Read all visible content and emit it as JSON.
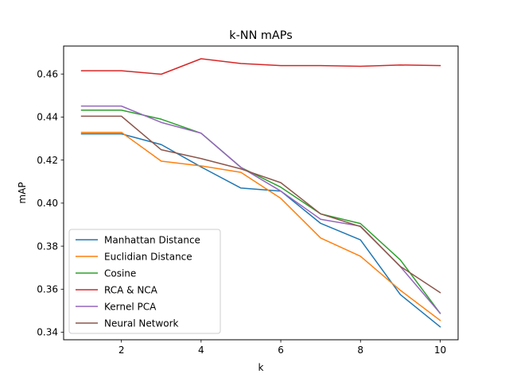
{
  "chart_data": {
    "type": "line",
    "title": "k-NN mAPs",
    "xlabel": "k",
    "ylabel": "mAP",
    "x": [
      1,
      2,
      3,
      4,
      5,
      6,
      7,
      8,
      9,
      10
    ],
    "xlim": [
      0.55,
      10.45
    ],
    "ylim": [
      0.3365,
      0.473
    ],
    "xticks": [
      2,
      4,
      6,
      8,
      10
    ],
    "yticks": [
      0.34,
      0.36,
      0.38,
      0.4,
      0.42,
      0.44,
      0.46
    ],
    "ytick_labels": [
      "0.34",
      "0.36",
      "0.38",
      "0.40",
      "0.42",
      "0.44",
      "0.46"
    ],
    "grid": false,
    "legend_position": "lower-left",
    "series": [
      {
        "name": "Manhattan Distance",
        "color": "#1f77b4",
        "values": [
          0.4322,
          0.4322,
          0.4272,
          0.4168,
          0.407,
          0.4056,
          0.3906,
          0.3829,
          0.3575,
          0.3425
        ]
      },
      {
        "name": "Euclidian Distance",
        "color": "#ff7f0e",
        "values": [
          0.4329,
          0.4329,
          0.4195,
          0.4173,
          0.4143,
          0.4022,
          0.3838,
          0.3753,
          0.3595,
          0.3455
        ]
      },
      {
        "name": "Cosine",
        "color": "#2ca02c",
        "values": [
          0.4432,
          0.4432,
          0.439,
          0.4325,
          0.4166,
          0.4074,
          0.395,
          0.3905,
          0.3736,
          0.3488
        ]
      },
      {
        "name": "RCA & NCA",
        "color": "#d62728",
        "values": [
          0.4615,
          0.4615,
          0.4599,
          0.4671,
          0.4649,
          0.4639,
          0.4639,
          0.4636,
          0.4642,
          0.4639
        ]
      },
      {
        "name": "Kernel PCA",
        "color": "#9467bd",
        "values": [
          0.4451,
          0.4451,
          0.4375,
          0.4325,
          0.4166,
          0.4056,
          0.3925,
          0.3893,
          0.3705,
          0.3488
        ]
      },
      {
        "name": "Neural Network",
        "color": "#8c564b",
        "values": [
          0.4404,
          0.4404,
          0.4248,
          0.4207,
          0.4159,
          0.4095,
          0.395,
          0.3891,
          0.3706,
          0.3584
        ]
      }
    ]
  }
}
